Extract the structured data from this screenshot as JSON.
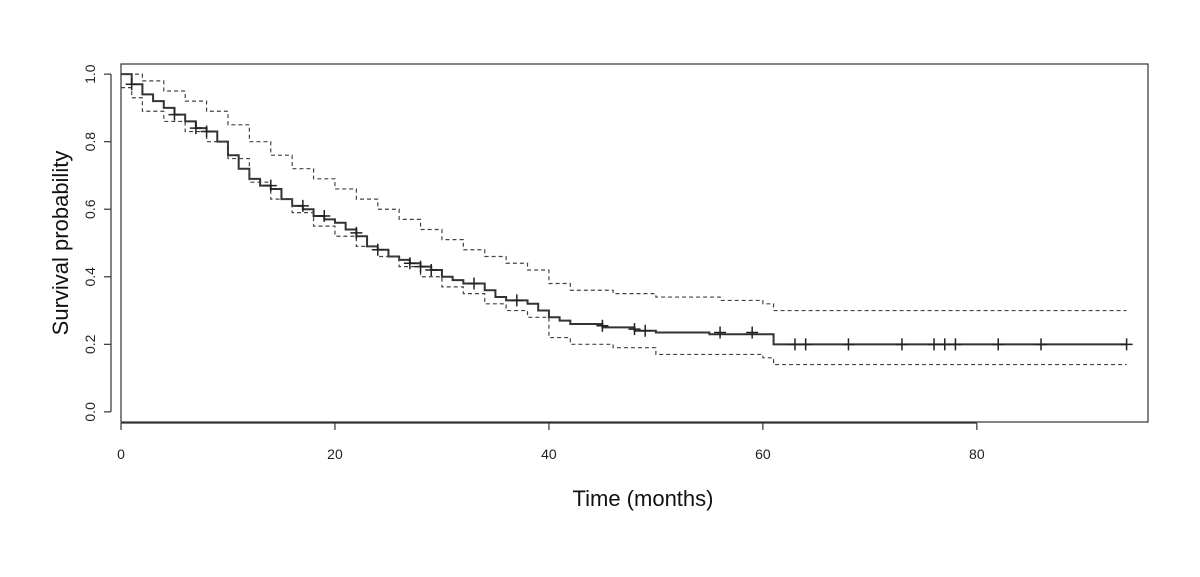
{
  "chart_data": {
    "type": "line",
    "xlabel": "Time (months)",
    "ylabel": "Survival probability",
    "xlim": [
      0,
      96
    ],
    "ylim": [
      -0.03,
      1.03
    ],
    "x_ticks": [
      0,
      20,
      40,
      60,
      80
    ],
    "y_ticks": [
      0.0,
      0.2,
      0.4,
      0.6,
      0.8,
      1.0
    ],
    "x_tick_labels": [
      "0",
      "20",
      "40",
      "60",
      "80"
    ],
    "y_tick_labels": [
      "0.0",
      "0.2",
      "0.4",
      "0.6",
      "0.8",
      "1.0"
    ],
    "grid": false,
    "legend": "none",
    "series": [
      {
        "role": "estimate",
        "style": "solid step",
        "x": [
          0,
          1,
          2,
          3,
          4,
          5,
          6,
          7,
          8,
          9,
          10,
          11,
          12,
          13,
          14,
          15,
          16,
          17,
          18,
          19,
          20,
          21,
          22,
          23,
          24,
          25,
          26,
          27,
          28,
          29,
          30,
          31,
          32,
          33,
          34,
          35,
          36,
          37,
          38,
          39,
          40,
          41,
          42,
          45,
          48,
          50,
          55,
          61,
          94
        ],
        "y": [
          1.0,
          0.97,
          0.94,
          0.92,
          0.9,
          0.88,
          0.86,
          0.84,
          0.83,
          0.8,
          0.76,
          0.72,
          0.69,
          0.67,
          0.66,
          0.63,
          0.61,
          0.6,
          0.58,
          0.57,
          0.56,
          0.54,
          0.52,
          0.49,
          0.48,
          0.46,
          0.45,
          0.44,
          0.43,
          0.42,
          0.4,
          0.39,
          0.38,
          0.38,
          0.36,
          0.34,
          0.33,
          0.33,
          0.32,
          0.3,
          0.28,
          0.27,
          0.26,
          0.25,
          0.24,
          0.235,
          0.23,
          0.2,
          0.2
        ]
      },
      {
        "role": "upper confidence limit",
        "style": "dashed step",
        "x": [
          0,
          2,
          4,
          6,
          8,
          10,
          12,
          14,
          16,
          18,
          20,
          22,
          24,
          26,
          28,
          30,
          32,
          34,
          36,
          38,
          40,
          42,
          46,
          50,
          56,
          60,
          61,
          94
        ],
        "y": [
          1.0,
          0.98,
          0.95,
          0.92,
          0.89,
          0.85,
          0.8,
          0.76,
          0.72,
          0.69,
          0.66,
          0.63,
          0.6,
          0.57,
          0.54,
          0.51,
          0.48,
          0.46,
          0.44,
          0.42,
          0.38,
          0.36,
          0.35,
          0.34,
          0.33,
          0.32,
          0.3,
          0.3
        ]
      },
      {
        "role": "lower confidence limit",
        "style": "dashed step",
        "x": [
          0,
          1,
          2,
          4,
          6,
          8,
          10,
          12,
          14,
          16,
          18,
          20,
          22,
          24,
          26,
          28,
          30,
          32,
          34,
          36,
          38,
          40,
          42,
          46,
          50,
          56,
          60,
          61,
          94
        ],
        "y": [
          0.96,
          0.93,
          0.89,
          0.86,
          0.83,
          0.8,
          0.75,
          0.68,
          0.63,
          0.59,
          0.55,
          0.52,
          0.49,
          0.46,
          0.43,
          0.4,
          0.37,
          0.35,
          0.32,
          0.3,
          0.28,
          0.22,
          0.2,
          0.19,
          0.17,
          0.17,
          0.16,
          0.14,
          0.14
        ]
      }
    ],
    "censor_marks": {
      "x": [
        1,
        5,
        7,
        8,
        14,
        17,
        19,
        22,
        24,
        27,
        28,
        29,
        33,
        37,
        45,
        48,
        49,
        56,
        59,
        63,
        64,
        68,
        73,
        76,
        77,
        78,
        82,
        86,
        94
      ],
      "y": [
        0.97,
        0.88,
        0.84,
        0.83,
        0.67,
        0.61,
        0.58,
        0.53,
        0.48,
        0.44,
        0.43,
        0.42,
        0.38,
        0.33,
        0.255,
        0.245,
        0.24,
        0.235,
        0.235,
        0.2,
        0.2,
        0.2,
        0.2,
        0.2,
        0.2,
        0.2,
        0.2,
        0.2,
        0.2
      ]
    }
  }
}
